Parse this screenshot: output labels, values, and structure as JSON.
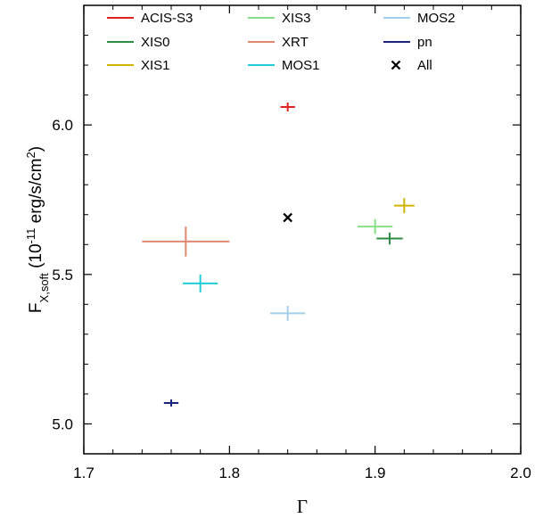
{
  "chart_data": {
    "type": "scatter",
    "title": "",
    "xlabel": "Γ",
    "ylabel": {
      "base": "F",
      "sub": "X,soft",
      "paren_open": " (10",
      "exp": "-11",
      "units": " erg/s/cm",
      "units_exp": "2",
      "paren_close": ")"
    },
    "xlim": [
      1.7,
      2.0
    ],
    "ylim": [
      4.9,
      6.4
    ],
    "x_ticks": [
      {
        "value": 1.7,
        "label": "1.7"
      },
      {
        "value": 1.8,
        "label": "1.8"
      },
      {
        "value": 1.9,
        "label": "1.9"
      },
      {
        "value": 2.0,
        "label": "2.0"
      }
    ],
    "y_ticks": [
      {
        "value": 5.0,
        "label": "5.0"
      },
      {
        "value": 5.5,
        "label": "5.5"
      },
      {
        "value": 6.0,
        "label": "6.0"
      }
    ],
    "grid": false,
    "legend_position": "top",
    "series": [
      {
        "name": "ACIS-S3",
        "color": "#dd2222",
        "marker": "errorbar",
        "x": 1.84,
        "x_err": 0.005,
        "y": 6.06,
        "y_err": 0.015
      },
      {
        "name": "XIS0",
        "color": "#2e8b44",
        "marker": "errorbar",
        "x": 1.91,
        "x_err": 0.009,
        "y": 5.62,
        "y_err": 0.02
      },
      {
        "name": "XIS1",
        "color": "#ccb400",
        "marker": "errorbar",
        "x": 1.92,
        "x_err": 0.007,
        "y": 5.73,
        "y_err": 0.025
      },
      {
        "name": "XIS3",
        "color": "#88e088",
        "marker": "errorbar",
        "x": 1.9,
        "x_err": 0.012,
        "y": 5.66,
        "y_err": 0.025
      },
      {
        "name": "XRT",
        "color": "#e08870",
        "marker": "errorbar",
        "x": 1.77,
        "x_err": 0.03,
        "y": 5.61,
        "y_err": 0.05
      },
      {
        "name": "MOS1",
        "color": "#22ccd8",
        "marker": "errorbar",
        "x": 1.78,
        "x_err": 0.012,
        "y": 5.47,
        "y_err": 0.03
      },
      {
        "name": "MOS2",
        "color": "#a4cfe8",
        "marker": "errorbar",
        "x": 1.84,
        "x_err": 0.012,
        "y": 5.37,
        "y_err": 0.025
      },
      {
        "name": "pn",
        "color": "#1a237e",
        "marker": "errorbar",
        "x": 1.76,
        "x_err": 0.005,
        "y": 5.07,
        "y_err": 0.012
      },
      {
        "name": "All",
        "color": "#000000",
        "marker": "x",
        "x": 1.84,
        "y": 5.69
      }
    ]
  }
}
